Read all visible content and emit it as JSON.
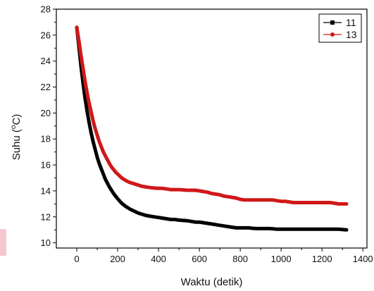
{
  "chart_data": {
    "type": "line",
    "title": "",
    "xlabel": "Waktu (detik)",
    "ylabel_parts": {
      "prefix": "Suhu (",
      "superscript": "o",
      "suffix": "C)"
    },
    "xlim": [
      -100,
      1420
    ],
    "ylim": [
      9.6,
      28
    ],
    "x_ticks": [
      0,
      200,
      400,
      600,
      800,
      1000,
      1200,
      1400
    ],
    "x_tick_labels": [
      "0",
      "200",
      "400",
      "600",
      "800",
      "1000",
      "1200",
      "1400"
    ],
    "y_ticks": [
      10,
      12,
      14,
      16,
      18,
      20,
      22,
      24,
      26,
      28
    ],
    "y_tick_labels": [
      "10",
      "12",
      "14",
      "16",
      "18",
      "20",
      "22",
      "24",
      "26",
      "28"
    ],
    "grid": false,
    "legend_position": "top-right",
    "series": [
      {
        "name": "11",
        "color": "#000000",
        "marker": "square",
        "x": [
          0,
          10,
          20,
          30,
          40,
          50,
          60,
          70,
          80,
          90,
          100,
          110,
          120,
          130,
          140,
          150,
          160,
          170,
          180,
          190,
          200,
          220,
          240,
          260,
          280,
          300,
          320,
          340,
          360,
          380,
          400,
          420,
          440,
          460,
          480,
          500,
          520,
          540,
          560,
          580,
          600,
          620,
          640,
          660,
          680,
          700,
          720,
          740,
          760,
          780,
          800,
          820,
          840,
          860,
          880,
          900,
          920,
          940,
          960,
          980,
          1000,
          1020,
          1040,
          1060,
          1080,
          1100,
          1120,
          1140,
          1160,
          1180,
          1200,
          1220,
          1240,
          1260,
          1280,
          1300,
          1320
        ],
        "y": [
          26.6,
          25.2,
          23.7,
          22.4,
          21.2,
          20.2,
          19.3,
          18.5,
          17.8,
          17.2,
          16.6,
          16.1,
          15.7,
          15.3,
          14.9,
          14.6,
          14.3,
          14.05,
          13.8,
          13.6,
          13.4,
          13.05,
          12.8,
          12.6,
          12.45,
          12.3,
          12.2,
          12.1,
          12.05,
          12.0,
          11.95,
          11.9,
          11.85,
          11.8,
          11.8,
          11.75,
          11.72,
          11.7,
          11.65,
          11.6,
          11.6,
          11.55,
          11.5,
          11.45,
          11.4,
          11.35,
          11.3,
          11.25,
          11.2,
          11.15,
          11.15,
          11.15,
          11.15,
          11.12,
          11.1,
          11.1,
          11.1,
          11.1,
          11.08,
          11.05,
          11.05,
          11.05,
          11.05,
          11.05,
          11.05,
          11.05,
          11.05,
          11.05,
          11.05,
          11.05,
          11.05,
          11.05,
          11.05,
          11.05,
          11.05,
          11.02,
          11.0
        ]
      },
      {
        "name": "13",
        "color": "#d01818",
        "marker": "circle",
        "x": [
          0,
          10,
          20,
          30,
          40,
          50,
          60,
          70,
          80,
          90,
          100,
          110,
          120,
          130,
          140,
          150,
          160,
          170,
          180,
          190,
          200,
          220,
          240,
          260,
          280,
          300,
          320,
          340,
          360,
          380,
          400,
          420,
          440,
          460,
          480,
          500,
          520,
          540,
          560,
          580,
          600,
          620,
          640,
          660,
          680,
          700,
          720,
          740,
          760,
          780,
          800,
          820,
          840,
          860,
          880,
          900,
          920,
          940,
          960,
          980,
          1000,
          1020,
          1040,
          1060,
          1080,
          1100,
          1120,
          1140,
          1160,
          1180,
          1200,
          1220,
          1240,
          1260,
          1280,
          1300,
          1320
        ],
        "y": [
          26.6,
          25.6,
          24.5,
          23.5,
          22.5,
          21.6,
          20.8,
          20.1,
          19.4,
          18.8,
          18.3,
          17.8,
          17.4,
          17.0,
          16.7,
          16.4,
          16.1,
          15.85,
          15.65,
          15.45,
          15.3,
          15.0,
          14.8,
          14.65,
          14.55,
          14.45,
          14.35,
          14.3,
          14.25,
          14.22,
          14.2,
          14.2,
          14.15,
          14.1,
          14.1,
          14.1,
          14.08,
          14.05,
          14.05,
          14.05,
          14.0,
          13.95,
          13.9,
          13.8,
          13.75,
          13.7,
          13.6,
          13.55,
          13.5,
          13.45,
          13.35,
          13.3,
          13.3,
          13.3,
          13.3,
          13.3,
          13.3,
          13.3,
          13.3,
          13.25,
          13.2,
          13.2,
          13.15,
          13.1,
          13.1,
          13.1,
          13.1,
          13.1,
          13.1,
          13.1,
          13.1,
          13.1,
          13.1,
          13.05,
          13.0,
          13.0,
          13.0
        ]
      }
    ]
  }
}
